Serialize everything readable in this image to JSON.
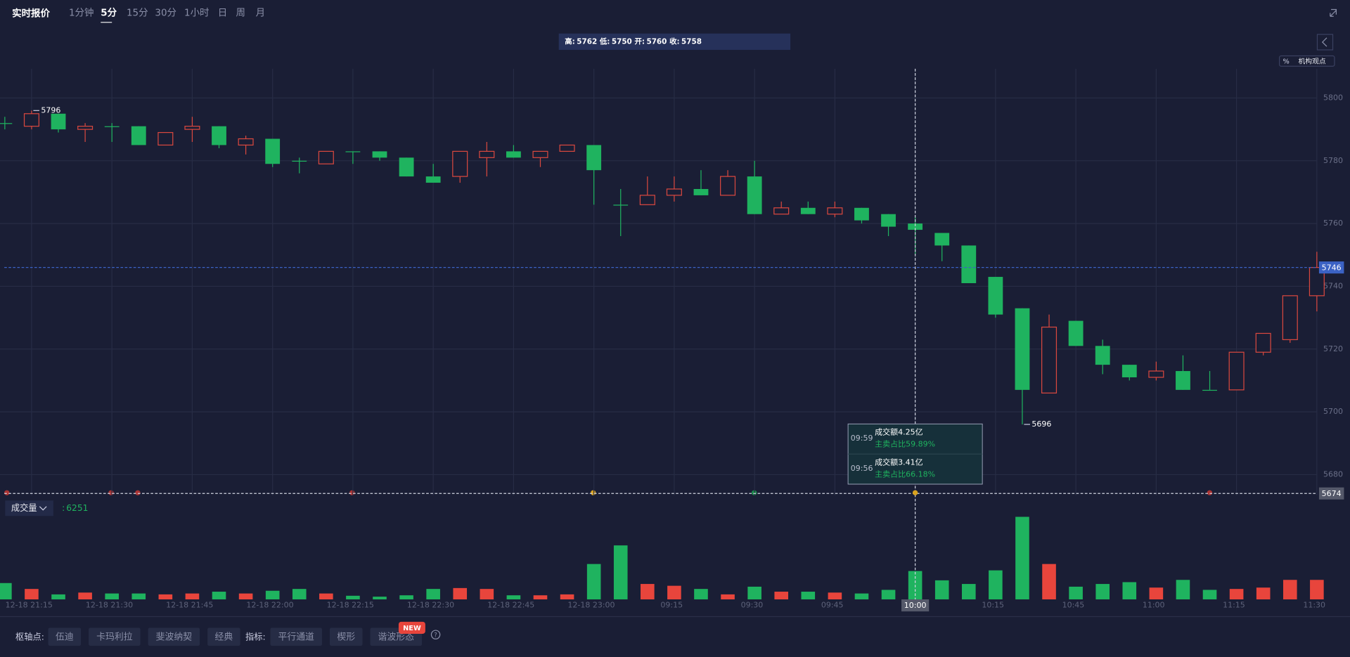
{
  "toolbar": {
    "title": "实时报价",
    "tabs": [
      "1分钟",
      "5分",
      "15分",
      "30分",
      "1小时",
      "日",
      "周",
      "月"
    ],
    "active_tab": 1
  },
  "side": {
    "percent_icon": "%",
    "opinion": "机构观点"
  },
  "hover_header": {
    "labels": [
      "高:",
      "低:",
      "开:",
      "收:"
    ]
  },
  "tooltip": {
    "rows": [
      {
        "time": "09:59",
        "amount": "成交额4.25亿",
        "ratio": "主卖占比59.89%"
      },
      {
        "time": "09:56",
        "amount": "成交额3.41亿",
        "ratio": "主卖占比66.18%"
      }
    ]
  },
  "bottom_bar": {
    "pivot_label": "枢轴点:",
    "pivots": [
      "伍迪",
      "卡玛利拉",
      "斐波纳契",
      "经典"
    ],
    "indicator_label": "指标:",
    "indicators": [
      "平行通道",
      "楔形",
      "谐波形态"
    ],
    "badge": "NEW",
    "help": "?"
  },
  "chart_data": [
    {
      "type": "candlestick",
      "categories": [
        null,
        "12-18 21:15",
        null,
        null,
        "12-18 21:30",
        null,
        null,
        "12-18 21:45",
        null,
        null,
        "12-18 22:00",
        null,
        null,
        "12-18 22:15",
        null,
        null,
        "12-18 22:30",
        null,
        null,
        "12-18 22:45",
        null,
        null,
        "12-18 23:00",
        null,
        null,
        "09:15",
        null,
        null,
        "09:30",
        null,
        null,
        "09:45",
        null,
        null,
        "10:00",
        null,
        null,
        "10:15",
        null,
        null,
        "10:45",
        null,
        null,
        "11:00",
        null,
        null,
        "11:15",
        null,
        null,
        "11:30"
      ],
      "open": [
        5792,
        5791,
        5795,
        5790,
        5791,
        5791,
        5785,
        5790,
        5791,
        5785,
        5787,
        5780,
        5779,
        5783,
        5783,
        5781,
        5775,
        5775,
        5781,
        5783,
        5781,
        5783,
        5785,
        5766,
        5766,
        5769,
        5771,
        5769,
        5775,
        5763,
        5765,
        5763,
        5765,
        5763,
        5760,
        5757,
        5753,
        5743,
        5733,
        5706,
        5729,
        5721,
        5715,
        5711,
        5713,
        5707,
        5707,
        5719,
        5723,
        5737
      ],
      "high": [
        5794,
        5796,
        5795,
        5792,
        5792,
        5791,
        5789,
        5794,
        5791,
        5788,
        5787,
        5781,
        5783,
        5783,
        5783,
        5781,
        5779,
        5783,
        5786,
        5785,
        5783,
        5785,
        5785,
        5771,
        5775,
        5775,
        5777,
        5777,
        5780,
        5767,
        5767,
        5767,
        5765,
        5763,
        5762,
        5757,
        5753,
        5743,
        5733,
        5731,
        5729,
        5723,
        5715,
        5716,
        5718,
        5713,
        5719,
        5725,
        5737,
        5751
      ],
      "low": [
        5790,
        5790,
        5789,
        5786,
        5786,
        5785,
        5785,
        5786,
        5784,
        5782,
        5778,
        5776,
        5779,
        5779,
        5780,
        5775,
        5773,
        5773,
        5775,
        5781,
        5778,
        5783,
        5766,
        5756,
        5766,
        5767,
        5769,
        5769,
        5763,
        5763,
        5763,
        5762,
        5760,
        5756,
        5750,
        5748,
        5741,
        5730,
        5696,
        5706,
        5721,
        5712,
        5710,
        5710,
        5707,
        5707,
        5707,
        5718,
        5722,
        5732
      ],
      "close": [
        5792,
        5795,
        5790,
        5791,
        5791,
        5785,
        5789,
        5791,
        5785,
        5787,
        5779,
        5780,
        5783,
        5783,
        5781,
        5775,
        5773,
        5783,
        5783,
        5781,
        5783,
        5785,
        5777,
        5766,
        5769,
        5771,
        5769,
        5775,
        5763,
        5765,
        5763,
        5765,
        5761,
        5759,
        5758,
        5753,
        5741,
        5731,
        5707,
        5727,
        5721,
        5715,
        5711,
        5713,
        5707,
        5707,
        5719,
        5725,
        5737,
        5746
      ],
      "up_color": "#d9483f",
      "down_color": "#1fb35f",
      "price_line_color": "#3b62c4",
      "ylim": [
        5673.4,
        5809.3
      ],
      "yticks": [
        5680,
        5700,
        5720,
        5740,
        5760,
        5780,
        5800
      ],
      "grid": true,
      "crosshair": {
        "x": "10:00",
        "y": 5674
      }
    },
    {
      "type": "bar",
      "label": "成交量",
      "separator": ":",
      "values": [
        3600,
        2300,
        1100,
        1500,
        1300,
        1300,
        1100,
        1300,
        1700,
        1300,
        1900,
        2300,
        1300,
        800,
        600,
        900,
        2300,
        2500,
        2300,
        900,
        900,
        1100,
        7800,
        11900,
        3400,
        3000,
        2300,
        1100,
        2800,
        1700,
        1700,
        1500,
        1300,
        2100,
        6251,
        4200,
        3400,
        6400,
        18200,
        7800,
        2800,
        3400,
        3800,
        2600,
        4300,
        2100,
        2300,
        2600,
        4300,
        4300
      ],
      "up_color": "#e8453c",
      "down_color": "#1fb35f"
    }
  ]
}
